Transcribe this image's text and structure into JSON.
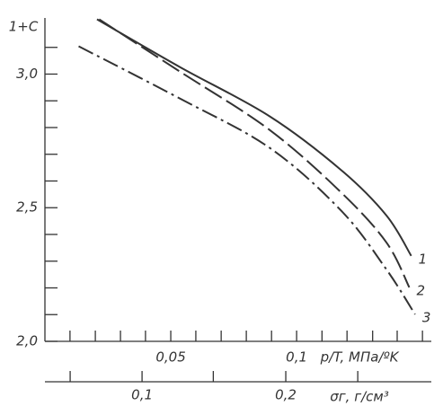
{
  "chart_data": {
    "type": "line",
    "y_label": "1+C",
    "x_label": "p/T, МПа/ºK",
    "x2_label": "σг, г/см³",
    "xscale": "log",
    "xlim": [
      0.025,
      0.21
    ],
    "xticks": [
      {
        "value": 0.05,
        "label": "0,05"
      },
      {
        "value": 0.1,
        "label": "0,1"
      }
    ],
    "xminorticks": [
      0.0287,
      0.033,
      0.0379,
      0.0435,
      0.0574,
      0.066,
      0.0758,
      0.0871,
      0.115,
      0.132,
      0.152,
      0.174,
      0.2
    ],
    "x2lim": [
      0.0626,
      0.4035
    ],
    "x2ticks": [
      {
        "value": 0.1,
        "label": "0,1"
      },
      {
        "value": 0.2,
        "label": "0,2"
      }
    ],
    "x2minorticks": [
      0.0707,
      0.141,
      0.283
    ],
    "ylim": [
      2.0,
      3.21
    ],
    "yticks": [
      {
        "value": 2.0,
        "label": "2,0"
      },
      {
        "value": 2.5,
        "label": "2,5"
      },
      {
        "value": 3.0,
        "label": "3,0"
      }
    ],
    "yminorticks": [
      2.1,
      2.2,
      2.3,
      2.4,
      2.6,
      2.7,
      2.8,
      2.9,
      3.1
    ],
    "series": [
      {
        "name": "1",
        "color": "#333333",
        "style": "solid",
        "x": [
          0.0333,
          0.0525,
          0.0862,
          0.128,
          0.164,
          0.188
        ],
        "values": [
          3.205,
          3.027,
          2.842,
          2.64,
          2.471,
          2.32
        ]
      },
      {
        "name": "2",
        "color": "#333333",
        "style": "dashed",
        "x": [
          0.0337,
          0.0525,
          0.0862,
          0.128,
          0.164,
          0.186
        ],
        "values": [
          3.205,
          3.01,
          2.791,
          2.556,
          2.37,
          2.202
        ]
      },
      {
        "name": "3",
        "color": "#333333",
        "style": "dashdot",
        "x": [
          0.0301,
          0.0525,
          0.0862,
          0.128,
          0.164,
          0.192
        ],
        "values": [
          3.104,
          2.909,
          2.724,
          2.488,
          2.269,
          2.101
        ]
      }
    ]
  }
}
